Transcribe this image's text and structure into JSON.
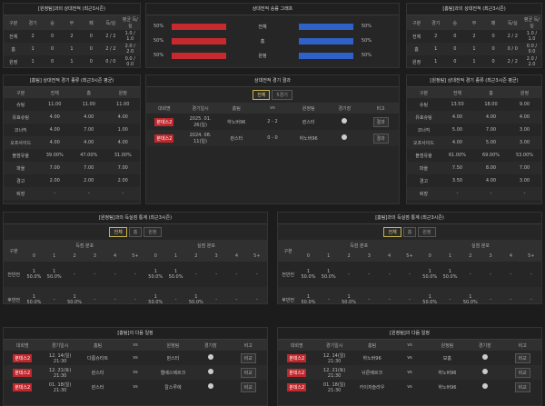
{
  "h2h_left": {
    "title": "[원정팀]과의 상대전적 (최근3시즌)",
    "headers": [
      "구분",
      "경기",
      "승",
      "무",
      "패",
      "득/실",
      "평균 득/실"
    ],
    "rows": [
      [
        "전체",
        "2",
        "0",
        "2",
        "0",
        "2 / 2",
        "1.0 / 1.0"
      ],
      [
        "홈",
        "1",
        "0",
        "1",
        "0",
        "2 / 2",
        "2.0 / 2.0"
      ],
      [
        "원정",
        "1",
        "0",
        "1",
        "0",
        "0 / 0",
        "0.0 / 0.0"
      ]
    ]
  },
  "winrate": {
    "title": "상대전적 승률 그래프",
    "rows": [
      {
        "left": 50,
        "left_label": "50%",
        "label": "전체",
        "right": 50,
        "right_label": "50%"
      },
      {
        "left": 50,
        "left_label": "50%",
        "label": "홈",
        "right": 50,
        "right_label": "50%"
      },
      {
        "left": 50,
        "left_label": "50%",
        "label": "원정",
        "right": 50,
        "right_label": "50%"
      }
    ]
  },
  "h2h_right": {
    "title": "[홈팀]과의 상대전적 (최근3시즌)",
    "headers": [
      "구분",
      "경기",
      "승",
      "무",
      "패",
      "득/실",
      "평균 득/실"
    ],
    "rows": [
      [
        "전체",
        "2",
        "0",
        "2",
        "0",
        "2 / 2",
        "1.0 / 1.0"
      ],
      [
        "홈",
        "1",
        "0",
        "1",
        "0",
        "0 / 0",
        "0.0 / 0.0"
      ],
      [
        "원정",
        "1",
        "0",
        "1",
        "0",
        "2 / 2",
        "2.0 / 2.0"
      ]
    ]
  },
  "stats_left": {
    "title": "[홈팀] 상대전적 경기 종류 (최근3시즌 평균)",
    "headers": [
      "구분",
      "전체",
      "홈",
      "원정"
    ],
    "rows": [
      [
        "슈팅",
        "11.00",
        "11.00",
        "11.00"
      ],
      [
        "유효슈팅",
        "4.00",
        "4.00",
        "4.00"
      ],
      [
        "코너킥",
        "4.00",
        "7.00",
        "1.00"
      ],
      [
        "오프사이드",
        "4.00",
        "4.00",
        "4.00"
      ],
      [
        "볼점유율",
        "39.00%",
        "47.00%",
        "31.00%"
      ],
      [
        "파울",
        "7.00",
        "7.00",
        "7.00"
      ],
      [
        "경고",
        "2.00",
        "2.00",
        "2.00"
      ],
      [
        "퇴장",
        "-",
        "-",
        "-"
      ]
    ]
  },
  "results": {
    "title": "상대전적 경기 결과",
    "tabs": [
      "전체",
      "5경기"
    ],
    "headers": [
      "대회명",
      "경기일시",
      "홈팀",
      "vs",
      "원정팀",
      "경기장",
      "비고"
    ],
    "rows": [
      [
        "분데스2",
        "2025. 01. 26(일)",
        "하노버96",
        "2 - 2",
        "뮌스터",
        "결과"
      ],
      [
        "분데스2",
        "2024. 08. 11(일)",
        "뮌스터",
        "0 - 0",
        "하노버96",
        "결과"
      ]
    ]
  },
  "stats_right": {
    "title": "[원정팀] 상대전적 경기 종류 (최근3시즌 평균)",
    "headers": [
      "구분",
      "전체",
      "홈",
      "원정"
    ],
    "rows": [
      [
        "슈팅",
        "13.50",
        "18.00",
        "9.00"
      ],
      [
        "유효슈팅",
        "4.00",
        "4.00",
        "4.00"
      ],
      [
        "코너킥",
        "5.00",
        "7.00",
        "3.00"
      ],
      [
        "오프사이드",
        "4.00",
        "5.00",
        "3.00"
      ],
      [
        "볼점유율",
        "61.00%",
        "69.00%",
        "53.00%"
      ],
      [
        "파울",
        "7.50",
        "8.00",
        "7.00"
      ],
      [
        "경고",
        "3.50",
        "4.00",
        "3.00"
      ],
      [
        "퇴장",
        "-",
        "-",
        "-"
      ]
    ]
  },
  "goals_left": {
    "title": "[원정팀]과의 득실점 통계 (최근3시즌)",
    "tabs": [
      "전체",
      "홈",
      "원정"
    ],
    "corner": "구분",
    "groups": [
      "득점 분포",
      "실점 분포"
    ],
    "sub": [
      "0",
      "1",
      "2",
      "3",
      "4",
      "5+",
      "0",
      "1",
      "2",
      "3",
      "4",
      "5+"
    ],
    "rows": [
      {
        "label": "전반전",
        "cells": [
          [
            "1",
            "50.0%"
          ],
          [
            "1",
            "50.0%"
          ],
          "-",
          "-",
          "-",
          "-",
          [
            "1",
            "50.0%"
          ],
          [
            "1",
            "50.0%"
          ],
          "-",
          "-",
          "-",
          "-"
        ]
      },
      {
        "label": "후반전",
        "cells": [
          [
            "1",
            "50.0%"
          ],
          "-",
          [
            "1",
            "50.0%"
          ],
          "-",
          "-",
          "-",
          [
            "1",
            "50.0%"
          ],
          "-",
          [
            "1",
            "50.0%"
          ],
          "-",
          "-",
          "-"
        ]
      }
    ]
  },
  "goals_right": {
    "title": "[홈팀]과의 득실점 통계 (최근3시즌)",
    "tabs": [
      "전체",
      "홈",
      "원정"
    ],
    "corner": "구분",
    "groups": [
      "득점 분포",
      "실점 분포"
    ],
    "sub": [
      "0",
      "1",
      "2",
      "3",
      "4",
      "5+",
      "0",
      "1",
      "2",
      "3",
      "4",
      "5+"
    ],
    "rows": [
      {
        "label": "전반전",
        "cells": [
          [
            "1",
            "50.0%"
          ],
          [
            "1",
            "50.0%"
          ],
          "-",
          "-",
          "-",
          "-",
          [
            "1",
            "50.0%"
          ],
          [
            "1",
            "50.0%"
          ],
          "-",
          "-",
          "-",
          "-"
        ]
      },
      {
        "label": "후반전",
        "cells": [
          [
            "1",
            "50.0%"
          ],
          "-",
          [
            "1",
            "50.0%"
          ],
          "-",
          "-",
          "-",
          [
            "1",
            "50.0%"
          ],
          "-",
          [
            "1",
            "50.0%"
          ],
          "-",
          "-",
          "-"
        ]
      }
    ]
  },
  "next_left": {
    "title": "[홈팀]의 다음 일정",
    "headers": [
      "대회명",
      "경기일시",
      "홈팀",
      "vs",
      "원정팀",
      "경기장",
      "비고"
    ],
    "rows": [
      [
        "분데스2",
        "12. 14(일) 21:30",
        "다름슈타트",
        "vs",
        "뮌스터",
        "비교"
      ],
      [
        "분데스2",
        "12. 21(토) 21:30",
        "뮌스터",
        "vs",
        "엘베스베르크",
        "비교"
      ],
      [
        "분데스2",
        "01. 18(일) 21:30",
        "뮌스터",
        "vs",
        "칼스루에",
        "비교"
      ]
    ]
  },
  "next_right": {
    "title": "[원정팀]의 다음 일정",
    "headers": [
      "대회명",
      "경기일시",
      "홈팀",
      "vs",
      "원정팀",
      "경기장",
      "비고"
    ],
    "rows": [
      [
        "분데스2",
        "12. 14(일) 21:30",
        "하노버96",
        "vs",
        "보훔",
        "비교"
      ],
      [
        "분데스2",
        "12. 21(토) 21:30",
        "뉘른베르크",
        "vs",
        "하노버96",
        "비교"
      ],
      [
        "분데스2",
        "01. 18(일) 21:30",
        "카이저슬라우",
        "vs",
        "하노버96",
        "비교"
      ]
    ]
  }
}
